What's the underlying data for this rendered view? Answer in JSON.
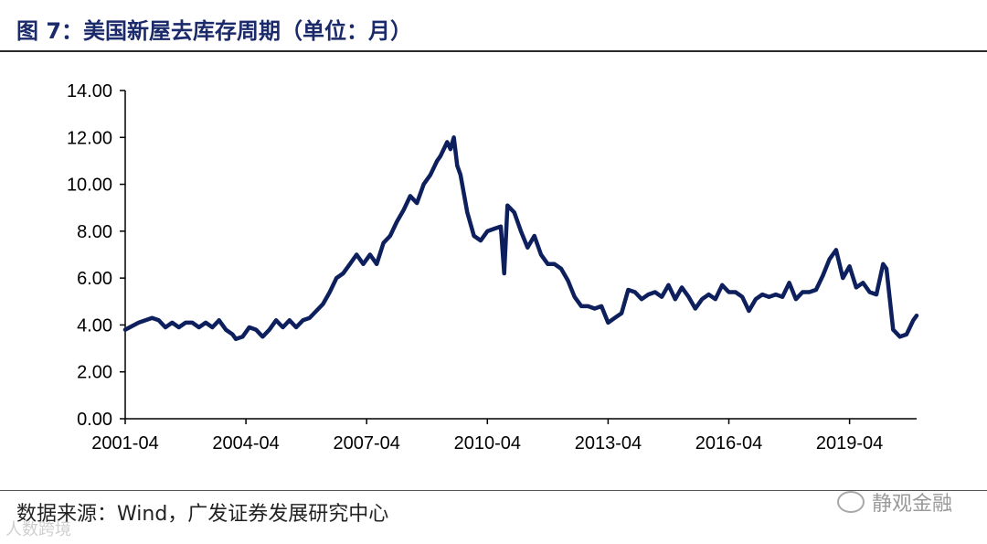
{
  "title": "图 7：美国新屋去库存周期（单位：月）",
  "source": "数据来源：Wind，广发证券发展研究中心",
  "watermark": "静观金融",
  "corner_mark": "人数跨境",
  "colors": {
    "line": "#0d1f5c",
    "title": "#1b2a6b",
    "axis": "#000000"
  },
  "chart_data": {
    "type": "line",
    "title": "",
    "xlabel": "",
    "ylabel": "",
    "ylim": [
      0,
      14
    ],
    "y_ticks": [
      "0.00",
      "2.00",
      "4.00",
      "6.00",
      "8.00",
      "10.00",
      "12.00",
      "14.00"
    ],
    "x_ticks": [
      "2001-04",
      "2004-04",
      "2007-04",
      "2010-04",
      "2013-04",
      "2016-04",
      "2019-04"
    ],
    "grid": false,
    "legend": "none",
    "series": [
      {
        "values": [
          [
            "2001-04",
            3.8
          ],
          [
            "2001-08",
            4.1
          ],
          [
            "2001-12",
            4.3
          ],
          [
            "2002-02",
            4.2
          ],
          [
            "2002-04",
            3.9
          ],
          [
            "2002-06",
            4.1
          ],
          [
            "2002-08",
            3.9
          ],
          [
            "2002-10",
            4.1
          ],
          [
            "2002-12",
            4.1
          ],
          [
            "2003-02",
            3.9
          ],
          [
            "2003-04",
            4.1
          ],
          [
            "2003-06",
            3.9
          ],
          [
            "2003-08",
            4.2
          ],
          [
            "2003-10",
            3.8
          ],
          [
            "2003-12",
            3.6
          ],
          [
            "2004-01",
            3.4
          ],
          [
            "2004-03",
            3.5
          ],
          [
            "2004-05",
            3.9
          ],
          [
            "2004-07",
            3.8
          ],
          [
            "2004-09",
            3.5
          ],
          [
            "2004-11",
            3.8
          ],
          [
            "2005-01",
            4.2
          ],
          [
            "2005-03",
            3.9
          ],
          [
            "2005-05",
            4.2
          ],
          [
            "2005-07",
            3.9
          ],
          [
            "2005-09",
            4.2
          ],
          [
            "2005-11",
            4.3
          ],
          [
            "2006-01",
            4.6
          ],
          [
            "2006-03",
            4.9
          ],
          [
            "2006-05",
            5.4
          ],
          [
            "2006-07",
            6.0
          ],
          [
            "2006-09",
            6.2
          ],
          [
            "2006-11",
            6.6
          ],
          [
            "2007-01",
            7.0
          ],
          [
            "2007-03",
            6.6
          ],
          [
            "2007-05",
            7.0
          ],
          [
            "2007-07",
            6.6
          ],
          [
            "2007-09",
            7.5
          ],
          [
            "2007-11",
            7.8
          ],
          [
            "2008-01",
            8.4
          ],
          [
            "2008-03",
            8.9
          ],
          [
            "2008-05",
            9.5
          ],
          [
            "2008-07",
            9.2
          ],
          [
            "2008-09",
            10.0
          ],
          [
            "2008-11",
            10.4
          ],
          [
            "2009-01",
            11.0
          ],
          [
            "2009-02",
            11.2
          ],
          [
            "2009-04",
            11.8
          ],
          [
            "2009-05",
            11.5
          ],
          [
            "2009-06",
            12.0
          ],
          [
            "2009-07",
            10.8
          ],
          [
            "2009-08",
            10.4
          ],
          [
            "2009-10",
            8.8
          ],
          [
            "2009-12",
            7.8
          ],
          [
            "2010-02",
            7.6
          ],
          [
            "2010-04",
            8.0
          ],
          [
            "2010-06",
            8.1
          ],
          [
            "2010-08",
            8.2
          ],
          [
            "2010-09",
            6.2
          ],
          [
            "2010-10",
            9.1
          ],
          [
            "2010-12",
            8.8
          ],
          [
            "2011-02",
            8.0
          ],
          [
            "2011-04",
            7.3
          ],
          [
            "2011-06",
            7.8
          ],
          [
            "2011-08",
            7.0
          ],
          [
            "2011-10",
            6.6
          ],
          [
            "2011-12",
            6.6
          ],
          [
            "2012-02",
            6.4
          ],
          [
            "2012-04",
            5.9
          ],
          [
            "2012-06",
            5.2
          ],
          [
            "2012-08",
            4.8
          ],
          [
            "2012-10",
            4.8
          ],
          [
            "2012-12",
            4.7
          ],
          [
            "2013-02",
            4.8
          ],
          [
            "2013-04",
            4.1
          ],
          [
            "2013-06",
            4.3
          ],
          [
            "2013-08",
            4.5
          ],
          [
            "2013-10",
            5.5
          ],
          [
            "2013-12",
            5.4
          ],
          [
            "2014-02",
            5.1
          ],
          [
            "2014-04",
            5.3
          ],
          [
            "2014-06",
            5.4
          ],
          [
            "2014-08",
            5.2
          ],
          [
            "2014-10",
            5.7
          ],
          [
            "2014-12",
            5.1
          ],
          [
            "2015-02",
            5.6
          ],
          [
            "2015-04",
            5.2
          ],
          [
            "2015-06",
            4.7
          ],
          [
            "2015-08",
            5.1
          ],
          [
            "2015-10",
            5.3
          ],
          [
            "2015-12",
            5.1
          ],
          [
            "2016-02",
            5.7
          ],
          [
            "2016-04",
            5.4
          ],
          [
            "2016-06",
            5.4
          ],
          [
            "2016-08",
            5.2
          ],
          [
            "2016-10",
            4.6
          ],
          [
            "2016-12",
            5.1
          ],
          [
            "2017-02",
            5.3
          ],
          [
            "2017-04",
            5.2
          ],
          [
            "2017-06",
            5.3
          ],
          [
            "2017-08",
            5.2
          ],
          [
            "2017-10",
            5.8
          ],
          [
            "2017-12",
            5.1
          ],
          [
            "2018-02",
            5.4
          ],
          [
            "2018-04",
            5.4
          ],
          [
            "2018-06",
            5.5
          ],
          [
            "2018-08",
            6.1
          ],
          [
            "2018-10",
            6.8
          ],
          [
            "2018-12",
            7.2
          ],
          [
            "2019-02",
            6.0
          ],
          [
            "2019-04",
            6.5
          ],
          [
            "2019-06",
            5.6
          ],
          [
            "2019-08",
            5.8
          ],
          [
            "2019-10",
            5.4
          ],
          [
            "2019-12",
            5.3
          ],
          [
            "2020-02",
            6.6
          ],
          [
            "2020-03",
            6.4
          ],
          [
            "2020-05",
            3.8
          ],
          [
            "2020-07",
            3.5
          ],
          [
            "2020-09",
            3.6
          ],
          [
            "2020-11",
            4.2
          ],
          [
            "2020-12",
            4.4
          ]
        ]
      }
    ]
  }
}
